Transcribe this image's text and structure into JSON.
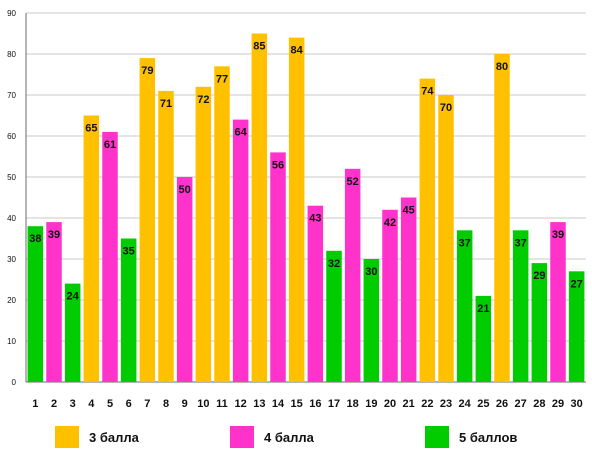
{
  "colors": {
    "3 балла": "#FFC000",
    "4 балла": "#FF33CC",
    "5 баллов": "#00CC00",
    "grid": "#c9c9c9",
    "axis": "#6b6b6b",
    "text": "#111111"
  },
  "legend": {
    "items": [
      {
        "label": "3 балла",
        "color": "#FFC000"
      },
      {
        "label": "4 балла",
        "color": "#FF33CC"
      },
      {
        "label": "5 баллов",
        "color": "#00CC00"
      }
    ]
  },
  "chart_data": {
    "type": "bar",
    "title": "",
    "xlabel": "",
    "ylabel": "",
    "ylim": [
      0,
      90
    ],
    "yticks": [
      0,
      10,
      20,
      30,
      40,
      50,
      60,
      70,
      80,
      90
    ],
    "grid": true,
    "legend_position": "bottom",
    "categories": [
      "1",
      "2",
      "3",
      "4",
      "5",
      "6",
      "7",
      "8",
      "9",
      "10",
      "11",
      "12",
      "13",
      "14",
      "15",
      "16",
      "17",
      "18",
      "19",
      "20",
      "21",
      "22",
      "23",
      "24",
      "25",
      "26",
      "27",
      "28",
      "29",
      "30"
    ],
    "values": [
      38,
      39,
      24,
      65,
      61,
      35,
      79,
      71,
      50,
      72,
      77,
      64,
      85,
      56,
      84,
      43,
      32,
      52,
      30,
      42,
      45,
      74,
      70,
      37,
      21,
      80,
      37,
      29,
      39,
      27
    ],
    "groups": [
      "5 баллов",
      "4 балла",
      "5 баллов",
      "3 балла",
      "4 балла",
      "5 баллов",
      "3 балла",
      "3 балла",
      "4 балла",
      "3 балла",
      "3 балла",
      "4 балла",
      "3 балла",
      "4 балла",
      "3 балла",
      "4 балла",
      "5 баллов",
      "4 балла",
      "5 баллов",
      "4 балла",
      "4 балла",
      "3 балла",
      "3 балла",
      "5 баллов",
      "5 баллов",
      "3 балла",
      "5 баллов",
      "5 баллов",
      "4 балла",
      "5 баллов"
    ]
  }
}
